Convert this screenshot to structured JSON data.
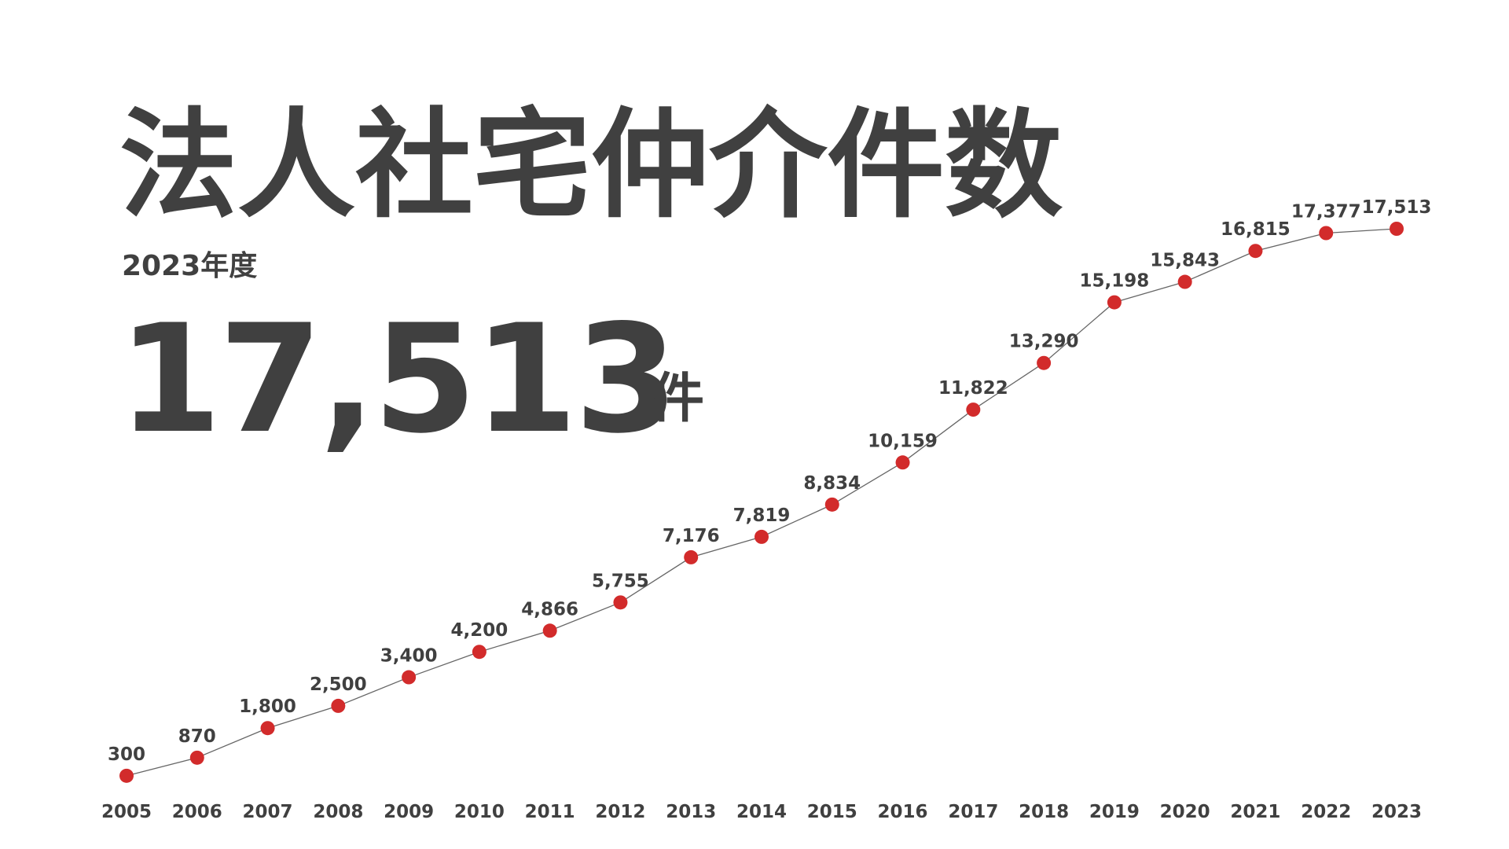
{
  "title": "法人社宅仲介件数",
  "subtitle": "2023年度",
  "headline_value": "17,513",
  "headline_unit": "件",
  "chart_data": {
    "type": "line",
    "categories": [
      "2005",
      "2006",
      "2007",
      "2008",
      "2009",
      "2010",
      "2011",
      "2012",
      "2013",
      "2014",
      "2015",
      "2016",
      "2017",
      "2018",
      "2019",
      "2020",
      "2021",
      "2022",
      "2023"
    ],
    "values": [
      300,
      870,
      1800,
      2500,
      3400,
      4200,
      4866,
      5755,
      7176,
      7819,
      8834,
      10159,
      11822,
      13290,
      15198,
      15843,
      16815,
      17377,
      17513
    ],
    "value_labels": [
      "300",
      "870",
      "1,800",
      "2,500",
      "3,400",
      "4,200",
      "4,866",
      "5,755",
      "7,176",
      "7,819",
      "8,834",
      "10,159",
      "11,822",
      "13,290",
      "15,198",
      "15,843",
      "16,815",
      "17,377",
      "17,513"
    ],
    "color": "#d22b2b",
    "line_color": "#666666"
  }
}
